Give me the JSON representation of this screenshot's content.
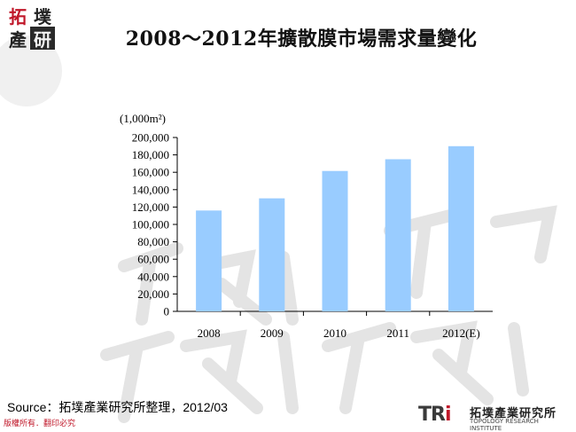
{
  "logo": {
    "chars": [
      "拓",
      "墣",
      "產",
      "研"
    ]
  },
  "title": "2008～2012年擴散膜市場需求量變化",
  "chart_data": {
    "type": "bar",
    "categories": [
      "2008",
      "2009",
      "2010",
      "2011",
      "2012(E)"
    ],
    "values": [
      116000,
      130000,
      161500,
      175000,
      190000
    ],
    "unit_label": "(1,000m²)",
    "ylim": [
      0,
      200000
    ],
    "y_ticks": [
      "0",
      "20,000",
      "40,000",
      "60,000",
      "80,000",
      "100,000",
      "120,000",
      "140,000",
      "160,000",
      "180,000",
      "200,000"
    ],
    "y_tick_values": [
      0,
      20000,
      40000,
      60000,
      80000,
      100000,
      120000,
      140000,
      160000,
      180000,
      200000
    ],
    "bar_color": "#99ccff",
    "grid": false,
    "legend": "none"
  },
  "source": "Source：拓墣產業研究所整理，2012/03",
  "copyright": "版權所有．翻印必究",
  "tri_logo": {
    "mark_t": "T",
    "mark_r": "R",
    "mark_i": "i",
    "cn_name": "拓墣產業研究所",
    "en_name": "TOPOLOGY RESEARCH INSTITUTE"
  },
  "colors": {
    "accent_red": "#c0182a",
    "bar": "#99ccff"
  }
}
